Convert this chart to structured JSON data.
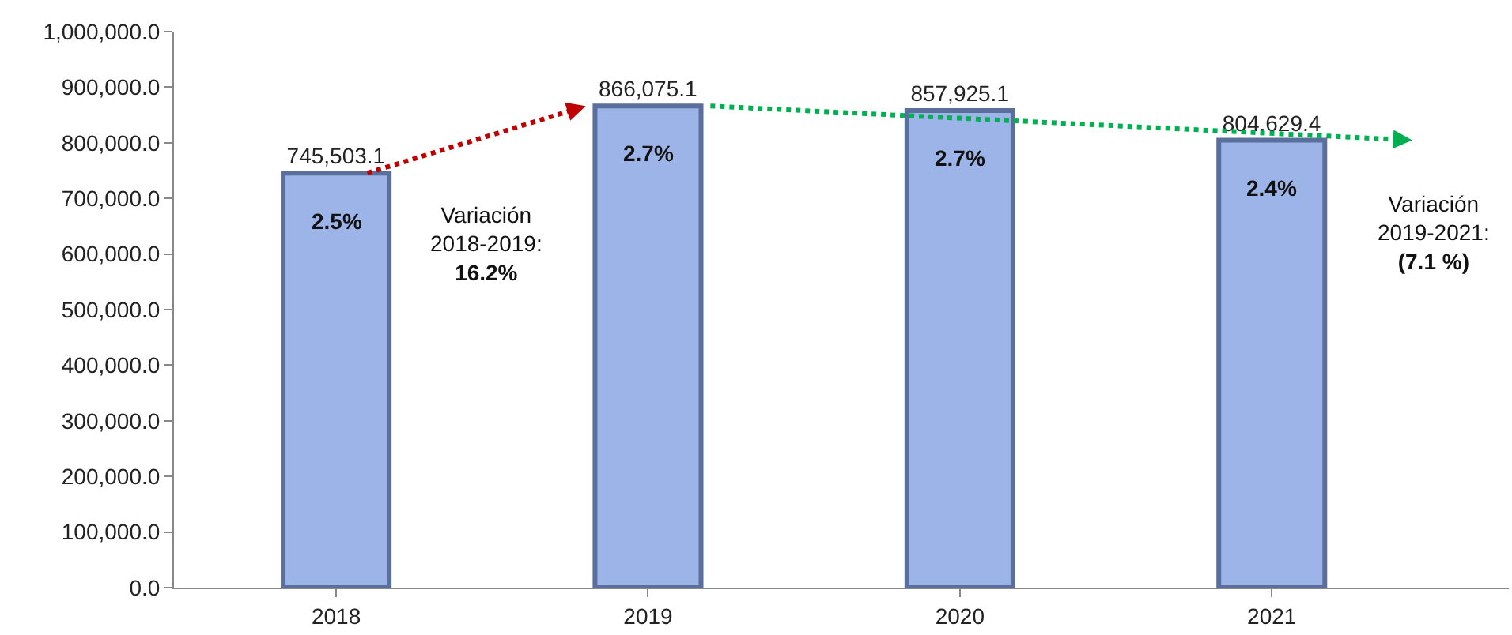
{
  "chart_data": {
    "type": "bar",
    "categories": [
      "2018",
      "2019",
      "2020",
      "2021"
    ],
    "values": [
      745503.1,
      866075.1,
      857925.1,
      804629.4
    ],
    "value_labels": [
      "745,503.1",
      "866,075.1",
      "857,925.1",
      "804,629.4"
    ],
    "color": "#9cb4e8",
    "ylim": [
      0,
      1000000
    ],
    "yticks": [
      {
        "value": 0,
        "label": "0.0"
      },
      {
        "value": 100000,
        "label": "100,000.0"
      },
      {
        "value": 200000,
        "label": "200,000.0"
      },
      {
        "value": 300000,
        "label": "300,000.0"
      },
      {
        "value": 400000,
        "label": "400,000.0"
      },
      {
        "value": 500000,
        "label": "500,000.0"
      },
      {
        "value": 600000,
        "label": "600,000.0"
      },
      {
        "value": 700000,
        "label": "700,000.0"
      },
      {
        "value": 800000,
        "label": "800,000.0"
      },
      {
        "value": 900000,
        "label": "900,000.0"
      },
      {
        "value": 1000000,
        "label": "1,000,000.0"
      }
    ],
    "legend": false,
    "annotations": [
      "2.5%",
      "2.7%",
      "2.7%",
      "2.4%",
      "Variación\n2018-2019:\n16.2%",
      "Variación\n2019-2021:\n(7.1 %)"
    ]
  }
}
